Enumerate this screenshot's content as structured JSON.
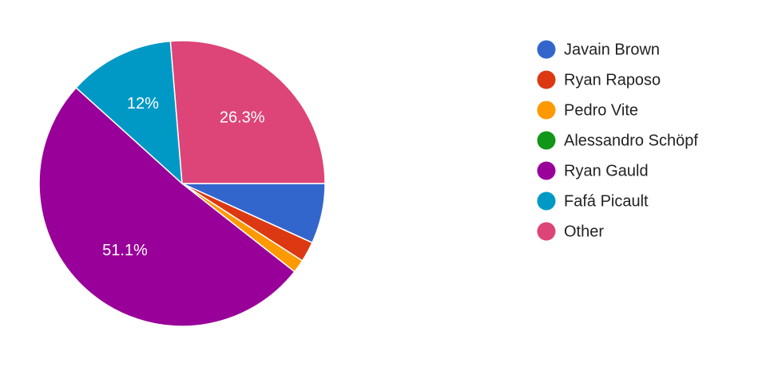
{
  "chart_data": {
    "type": "pie",
    "categories": [
      "Javain Brown",
      "Ryan Raposo",
      "Pedro Vite",
      "Alessandro Schöpf",
      "Ryan Gauld",
      "Fafá Picault",
      "Other"
    ],
    "values": [
      6.8,
      2.3,
      1.5,
      0,
      51.1,
      12,
      26.3
    ],
    "value_labels": [
      null,
      null,
      null,
      null,
      "51.1%",
      "12%",
      "26.3%"
    ],
    "colors": [
      "#3366cc",
      "#dc3912",
      "#ff9900",
      "#109618",
      "#990099",
      "#0099c6",
      "#dd4477"
    ],
    "legend": "right"
  }
}
